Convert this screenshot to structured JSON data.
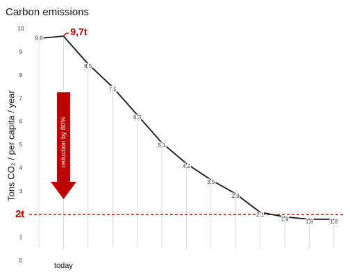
{
  "chart_data": {
    "type": "line",
    "title": "Carbon emissions",
    "y_label": "Tons CO₂ / per capita / year",
    "categories": [
      null,
      "today",
      null,
      null,
      null,
      null,
      null,
      null,
      null,
      null,
      null,
      null,
      null
    ],
    "series": [
      {
        "name": "Carbon emissions",
        "color": "#111111",
        "values": [
          9.6,
          9.7,
          8.5,
          7.5,
          6.3,
          5.1,
          4.2,
          3.5,
          2.9,
          2.1,
          1.9,
          1.8,
          1.8
        ],
        "value_labels": [
          "9,6",
          "9,7t",
          "8,5",
          "7,5",
          "6,3",
          "5,1",
          "4,2",
          "3,5",
          "2,9",
          "2,1",
          "1,9",
          "1,8",
          "1,8"
        ]
      }
    ],
    "ylim": [
      0,
      10
    ],
    "yticks": [
      0,
      1,
      2,
      3,
      4,
      5,
      6,
      7,
      8,
      9,
      10
    ],
    "reference_line": {
      "value": 2,
      "label": "2t",
      "color": "#c00000"
    },
    "annotation": {
      "text": "reduction by 80%",
      "color": "#c00000"
    }
  }
}
